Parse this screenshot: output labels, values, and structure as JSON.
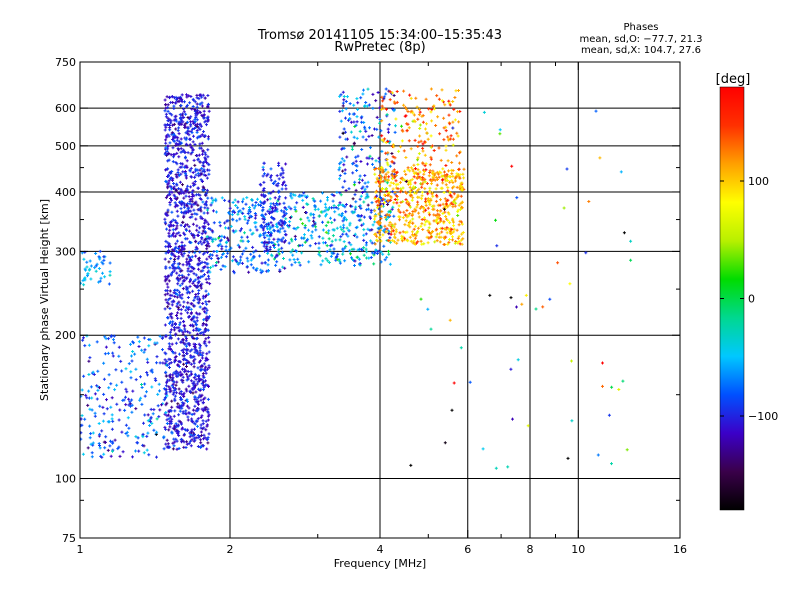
{
  "header": {
    "title": "Tromsø 20141105 15:34:00–15:35:43",
    "subtitle": "RwPretec (8p)"
  },
  "phase_info": {
    "heading": "Phases",
    "line_o": "mean, sd,O: −77.7, 21.3",
    "line_x": "mean, sd,X: 104.7, 27.6"
  },
  "colorbar": {
    "unit_label": "[deg]",
    "ticks": [
      {
        "value": 100,
        "label": "100"
      },
      {
        "value": 0,
        "label": "0"
      },
      {
        "value": -100,
        "label": "−100"
      }
    ],
    "range": [
      -180,
      180
    ],
    "colors": [
      "#000000",
      "#3a004a",
      "#3b00c8",
      "#0050ff",
      "#00c8ff",
      "#00d890",
      "#00dc00",
      "#b8f000",
      "#ffff00",
      "#ffa000",
      "#ff3000",
      "#ff0000"
    ]
  },
  "chart_data": {
    "type": "scatter",
    "xlabel": "Frequency [MHz]",
    "ylabel": "Stationary phase Virtual Height [km]",
    "xscale": "log",
    "yscale": "log",
    "xlim": [
      1,
      16
    ],
    "ylim": [
      75,
      750
    ],
    "grid": true,
    "x_ticks": [
      1,
      2,
      4,
      6,
      8,
      10,
      16
    ],
    "y_ticks": [
      75,
      100,
      200,
      300,
      400,
      500,
      600,
      750
    ],
    "x_minor_ticks": [
      3,
      5,
      7,
      9
    ],
    "y_minor_ticks": [
      90,
      150,
      250,
      350,
      450
    ],
    "x_gridlines": [
      2,
      4,
      6,
      8,
      10
    ],
    "y_gridlines": [
      100,
      200,
      300,
      400,
      500,
      600
    ],
    "clusters": [
      {
        "trace": "O",
        "x": [
          1.48,
          1.82
        ],
        "y": [
          115,
          640
        ],
        "count": 1500,
        "phase_mean": -105,
        "phase_sd": 15
      },
      {
        "trace": "O",
        "x": [
          1.0,
          1.5
        ],
        "y": [
          110,
          200
        ],
        "count": 260,
        "phase_mean": -80,
        "phase_sd": 25
      },
      {
        "trace": "O",
        "x": [
          1.0,
          1.15
        ],
        "y": [
          255,
          300
        ],
        "count": 45,
        "phase_mean": -60,
        "phase_sd": 15
      },
      {
        "trace": "O",
        "x": [
          1.8,
          2.6
        ],
        "y": [
          270,
          390
        ],
        "count": 280,
        "phase_mean": -75,
        "phase_sd": 25
      },
      {
        "trace": "O",
        "x": [
          2.3,
          2.6
        ],
        "y": [
          300,
          460
        ],
        "count": 140,
        "phase_mean": -100,
        "phase_sd": 12
      },
      {
        "trace": "O",
        "x": [
          2.6,
          4.2
        ],
        "y": [
          280,
          400
        ],
        "count": 330,
        "phase_mean": -60,
        "phase_sd": 30
      },
      {
        "trace": "O",
        "x": [
          3.3,
          4.3
        ],
        "y": [
          350,
          660
        ],
        "count": 220,
        "phase_mean": -80,
        "phase_sd": 35
      },
      {
        "trace": "X",
        "x": [
          3.9,
          5.9
        ],
        "y": [
          310,
          450
        ],
        "count": 560,
        "phase_mean": 110,
        "phase_sd": 25
      },
      {
        "trace": "X",
        "x": [
          4.0,
          5.8
        ],
        "y": [
          420,
          660
        ],
        "count": 200,
        "phase_mean": 115,
        "phase_sd": 30
      },
      {
        "trace": "mixed",
        "x": [
          4.5,
          13.5
        ],
        "y": [
          100,
          620
        ],
        "count": 60,
        "phase_mean": 0,
        "phase_sd": 120
      }
    ]
  }
}
